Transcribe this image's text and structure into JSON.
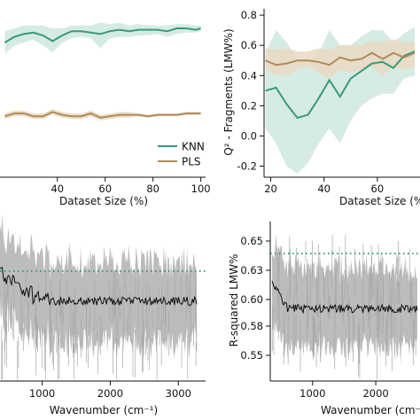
{
  "colors": {
    "knn": "#3a9a78",
    "knn_band": "#cfe8de",
    "pls": "#b08b5a",
    "pls_band": "#ead9c3",
    "spectrum": "#b5b5b5",
    "mean": "#111111",
    "reference": "#3a9a78"
  },
  "chart_data": [
    {
      "type": "line",
      "panel": "top-left",
      "xlabel": "Dataset Size (%)",
      "ylabel": "",
      "x_ticks": [
        "40",
        "60",
        "80",
        "100"
      ],
      "xlim": [
        16,
        102
      ],
      "ylim": [
        0,
        1
      ],
      "x": [
        18,
        22,
        26,
        30,
        34,
        38,
        42,
        46,
        50,
        54,
        58,
        62,
        66,
        70,
        74,
        78,
        82,
        86,
        90,
        94,
        98,
        100
      ],
      "legend": {
        "placement": "lower-right",
        "entries": [
          "KNN",
          "PLS"
        ]
      },
      "series": [
        {
          "name": "KNN",
          "values": [
            0.7,
            0.74,
            0.76,
            0.77,
            0.75,
            0.71,
            0.75,
            0.78,
            0.78,
            0.77,
            0.76,
            0.78,
            0.79,
            0.78,
            0.79,
            0.79,
            0.79,
            0.78,
            0.8,
            0.8,
            0.79,
            0.8
          ],
          "band_low": [
            0.62,
            0.68,
            0.7,
            0.72,
            0.68,
            0.63,
            0.7,
            0.73,
            0.74,
            0.73,
            0.66,
            0.73,
            0.74,
            0.74,
            0.75,
            0.75,
            0.76,
            0.74,
            0.76,
            0.77,
            0.77,
            0.78
          ],
          "band_high": [
            0.78,
            0.8,
            0.82,
            0.82,
            0.82,
            0.8,
            0.8,
            0.82,
            0.82,
            0.82,
            0.84,
            0.83,
            0.84,
            0.82,
            0.83,
            0.82,
            0.82,
            0.82,
            0.83,
            0.83,
            0.82,
            0.82
          ]
        },
        {
          "name": "PLS",
          "values": [
            0.18,
            0.2,
            0.2,
            0.18,
            0.18,
            0.21,
            0.19,
            0.18,
            0.18,
            0.2,
            0.17,
            0.18,
            0.19,
            0.19,
            0.19,
            0.18,
            0.19,
            0.19,
            0.19,
            0.2,
            0.2,
            0.2
          ],
          "band_low": [
            0.16,
            0.18,
            0.18,
            0.16,
            0.16,
            0.19,
            0.17,
            0.16,
            0.16,
            0.18,
            0.15,
            0.16,
            0.17,
            0.17,
            0.18,
            0.17,
            0.18,
            0.18,
            0.18,
            0.19,
            0.19,
            0.19
          ],
          "band_high": [
            0.2,
            0.22,
            0.22,
            0.2,
            0.2,
            0.23,
            0.21,
            0.2,
            0.2,
            0.22,
            0.19,
            0.2,
            0.21,
            0.21,
            0.2,
            0.19,
            0.2,
            0.2,
            0.2,
            0.21,
            0.21,
            0.21
          ]
        }
      ]
    },
    {
      "type": "line",
      "panel": "top-right",
      "xlabel": "Dataset Size (%",
      "ylabel": "Q² - Fragments (LMW%)",
      "x_ticks": [
        "20",
        "40",
        "60"
      ],
      "y_ticks": [
        "-0.2",
        "0.0",
        "0.2",
        "0.4",
        "0.6",
        "0.8"
      ],
      "xlim": [
        17.5,
        76
      ],
      "ylim": [
        -0.25,
        0.83
      ],
      "x": [
        18,
        22,
        26,
        30,
        34,
        38,
        42,
        46,
        50,
        54,
        58,
        62,
        66,
        70,
        74
      ],
      "series": [
        {
          "name": "KNN",
          "values": [
            0.3,
            0.32,
            0.21,
            0.12,
            0.14,
            0.25,
            0.37,
            0.26,
            0.38,
            0.43,
            0.48,
            0.49,
            0.45,
            0.53,
            0.56
          ],
          "band_low": [
            0.05,
            -0.05,
            -0.2,
            -0.25,
            -0.18,
            -0.05,
            0.05,
            -0.05,
            0.1,
            0.2,
            0.25,
            0.28,
            0.28,
            0.38,
            0.4
          ],
          "band_high": [
            0.55,
            0.7,
            0.62,
            0.5,
            0.48,
            0.55,
            0.7,
            0.6,
            0.6,
            0.66,
            0.7,
            0.7,
            0.62,
            0.68,
            0.72
          ]
        },
        {
          "name": "PLS",
          "values": [
            0.5,
            0.47,
            0.48,
            0.5,
            0.5,
            0.49,
            0.47,
            0.52,
            0.5,
            0.51,
            0.55,
            0.51,
            0.55,
            0.52,
            0.55
          ],
          "band_low": [
            0.44,
            0.4,
            0.4,
            0.44,
            0.46,
            0.42,
            0.38,
            0.44,
            0.42,
            0.44,
            0.46,
            0.4,
            0.46,
            0.44,
            0.46
          ],
          "band_high": [
            0.58,
            0.57,
            0.58,
            0.56,
            0.56,
            0.58,
            0.57,
            0.6,
            0.6,
            0.6,
            0.63,
            0.62,
            0.64,
            0.62,
            0.62
          ]
        }
      ]
    },
    {
      "type": "line",
      "panel": "bottom-left",
      "xlabel": "Wavenumber (cm⁻¹)",
      "ylabel": "",
      "x_ticks": [
        "1000",
        "2000",
        "3000"
      ],
      "xlim": [
        380,
        3400
      ],
      "ylim": [
        0,
        1
      ],
      "series": [
        {
          "name": "spectrum",
          "values": "noisy signal: mean ~0.36, spread ±0.18 (normalized panel height)"
        }
      ],
      "reference_line": {
        "value": 0.72,
        "style": "dotted"
      }
    },
    {
      "type": "line",
      "panel": "bottom-right",
      "xlabel": "Wavenumber (cm⁻¹)",
      "ylabel": "R-squared LMW%",
      "x_ticks": [
        "1000",
        "2000"
      ],
      "y_ticks": [
        "0.55",
        "0.58",
        "0.60",
        "0.63",
        "0.65"
      ],
      "xlim": [
        330,
        2700
      ],
      "ylim": [
        0.54,
        0.662
      ],
      "series": [
        {
          "name": "mean",
          "values": "noisy curve around 0.593 (peak ~0.625 near 400 cm⁻¹)"
        }
      ],
      "reference_line": {
        "value": 0.639,
        "style": "dotted"
      }
    }
  ]
}
